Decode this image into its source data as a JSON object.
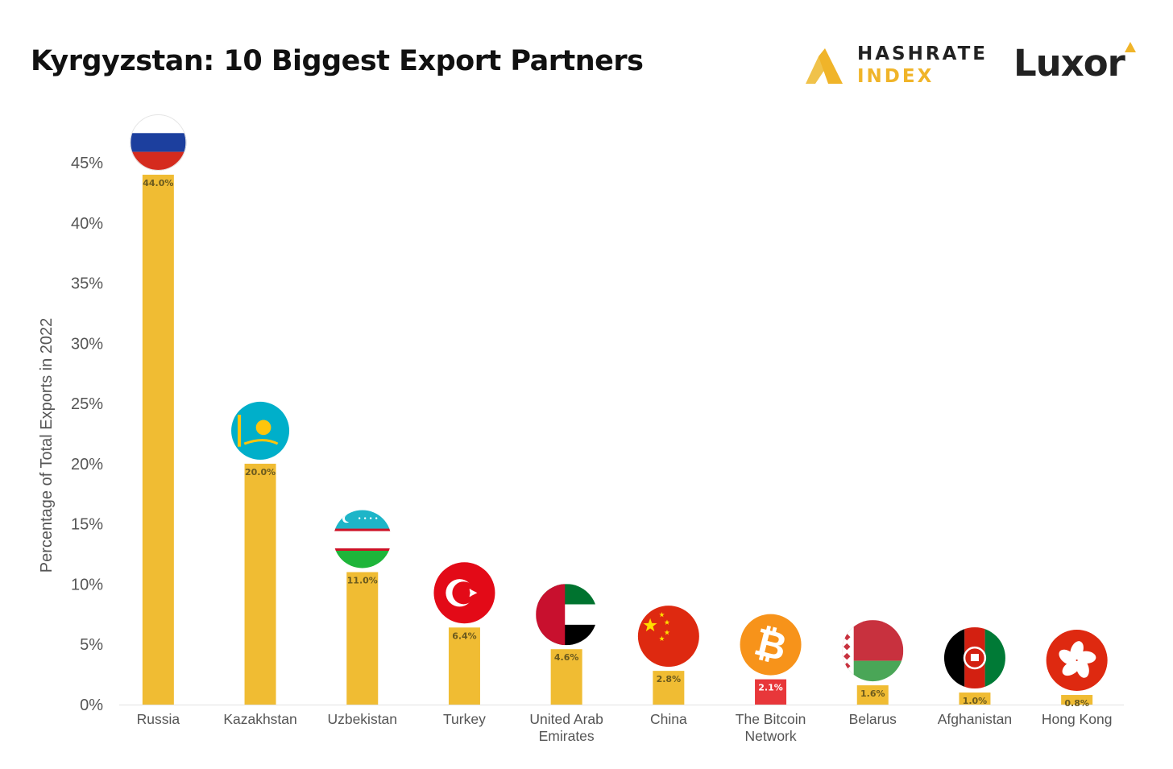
{
  "title": "Kyrgyzstan: 10 Biggest Export Partners",
  "logos": {
    "hashrate_line1": "HASHRATE",
    "hashrate_line2": "INDEX",
    "luxor": "Luxor"
  },
  "colors": {
    "bar": "#f0bc33",
    "bitcoin_bar": "#e8373a",
    "brand_gold": "#f0b429",
    "axis_text": "#555555"
  },
  "chart_data": {
    "type": "bar",
    "title": "Kyrgyzstan: 10 Biggest Export Partners",
    "xlabel": "",
    "ylabel": "Percentage of Total Exports in 2022",
    "ylim": [
      0,
      45
    ],
    "yticks": [
      "0%",
      "5%",
      "10%",
      "15%",
      "20%",
      "25%",
      "30%",
      "35%",
      "40%",
      "45%"
    ],
    "grid": false,
    "categories": [
      "Russia",
      "Kazakhstan",
      "Uzbekistan",
      "Turkey",
      "United Arab Emirates",
      "China",
      "The Bitcoin Network",
      "Belarus",
      "Afghanistan",
      "Hong Kong"
    ],
    "category_lines": [
      [
        "Russia"
      ],
      [
        "Kazakhstan"
      ],
      [
        "Uzbekistan"
      ],
      [
        "Turkey"
      ],
      [
        "United Arab",
        "Emirates"
      ],
      [
        "China"
      ],
      [
        "The Bitcoin",
        "Network"
      ],
      [
        "Belarus"
      ],
      [
        "Afghanistan"
      ],
      [
        "Hong Kong"
      ]
    ],
    "values": [
      44.0,
      20.0,
      11.0,
      6.4,
      4.6,
      2.8,
      2.1,
      1.6,
      1.0,
      0.8
    ],
    "value_labels": [
      "44.0%",
      "20.0%",
      "11.0%",
      "6.4%",
      "4.6%",
      "2.8%",
      "2.1%",
      "1.6%",
      "1.0%",
      "0.8%"
    ],
    "icons": [
      "russia-flag-icon",
      "kazakhstan-flag-icon",
      "uzbekistan-flag-icon",
      "turkey-flag-icon",
      "uae-flag-icon",
      "china-flag-icon",
      "bitcoin-icon",
      "belarus-flag-icon",
      "afghanistan-flag-icon",
      "hong-kong-flag-icon"
    ],
    "highlight_category": "The Bitcoin Network"
  }
}
